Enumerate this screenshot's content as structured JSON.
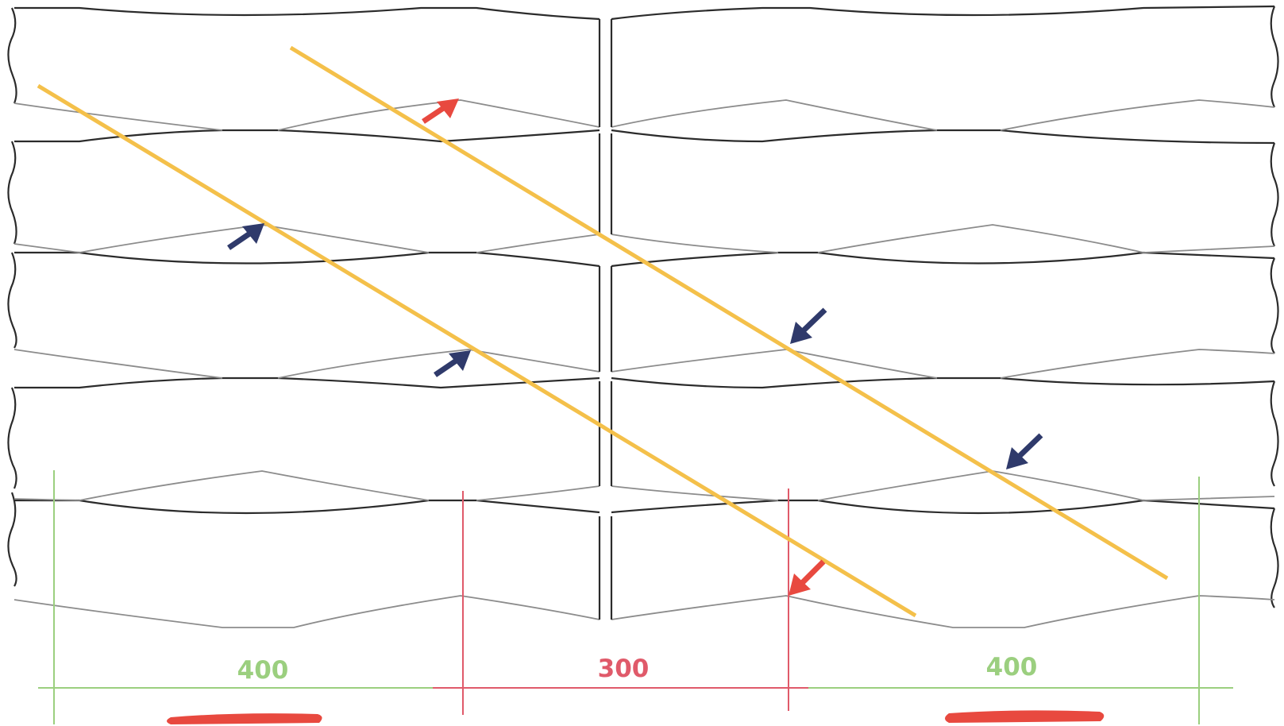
{
  "dimensions": {
    "left_span": {
      "label": "400",
      "color": "#9bcf7f"
    },
    "middle_span": {
      "label": "300",
      "color": "#e05a6a"
    },
    "right_span": {
      "label": "400",
      "color": "#9bcf7f"
    }
  },
  "colors": {
    "outline": "#2b2b2b",
    "inner_contour": "#8c8c8c",
    "diagonal": "#f4c04a",
    "arrow_blue": "#2f3a6b",
    "arrow_red": "#e8493f",
    "underline": "#e8493f"
  },
  "annotations": {
    "blue_arrows": 4,
    "red_arrows": 2,
    "diagonal_lines": 2,
    "underlines": 2
  }
}
